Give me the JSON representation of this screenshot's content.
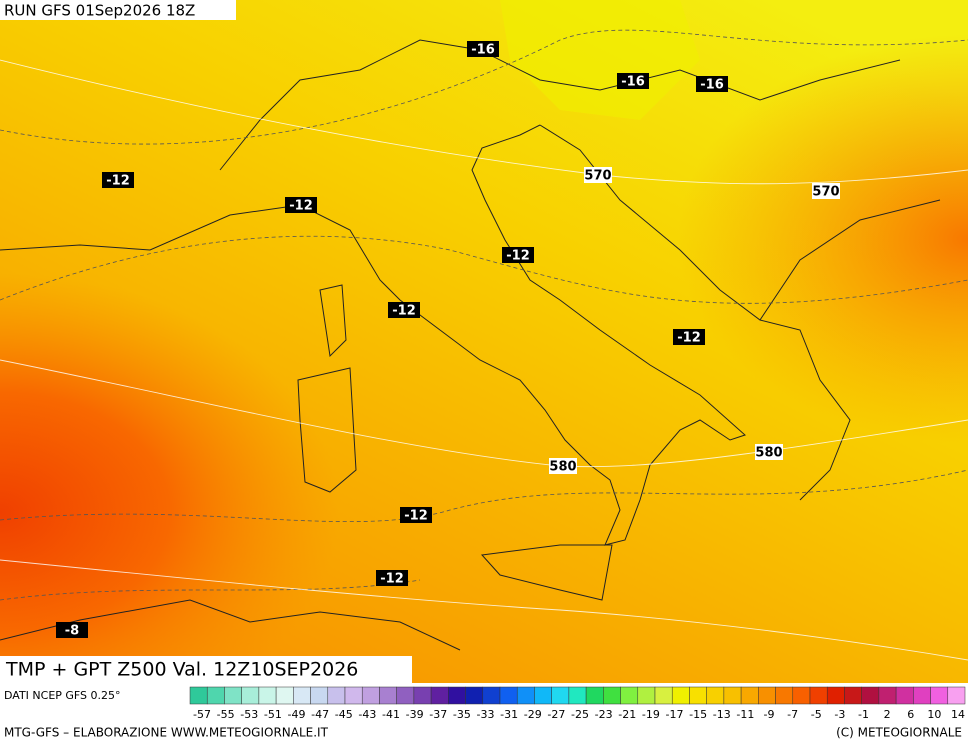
{
  "header": {
    "run": "RUN GFS 01Sep2026 18Z"
  },
  "labels": {
    "temperature": [
      "-16",
      "-16",
      "-16",
      "-12",
      "-12",
      "-12",
      "-12",
      "-12",
      "-12",
      "-12",
      "-8"
    ],
    "geopotential": [
      "570",
      "570",
      "580",
      "580"
    ]
  },
  "title": "TMP + GPT Z500 Val. 12Z10SEP2026",
  "source": "DATI NCEP GFS 0.25°",
  "colorbar": {
    "labels": [
      "-57",
      "-55",
      "-53",
      "-51",
      "-49",
      "-47",
      "-45",
      "-43",
      "-41",
      "-39",
      "-37",
      "-35",
      "-33",
      "-31",
      "-29",
      "-27",
      "-25",
      "-23",
      "-21",
      "-19",
      "-17",
      "-15",
      "-13",
      "-11",
      "-9",
      "-7",
      "-5",
      "-3",
      "-1",
      "2",
      "6",
      "10",
      "14"
    ],
    "colors": [
      "#2fc99a",
      "#4fd6ad",
      "#7fe3c6",
      "#a8eed9",
      "#c9f5e8",
      "#dff7f1",
      "#d8e8f5",
      "#c8d8f0",
      "#c8c0ec",
      "#d0b8ec",
      "#c0a0e0",
      "#a880d0",
      "#9060c0",
      "#7840b0",
      "#6020a0",
      "#3010a0",
      "#1020b0",
      "#1040d0",
      "#1060f0",
      "#1090f8",
      "#10b8f8",
      "#20d8f0",
      "#20e8c0",
      "#20d860",
      "#40e040",
      "#80f040",
      "#b0f040",
      "#d8f040",
      "#f0f000",
      "#f8e000",
      "#f8d000",
      "#f8c000",
      "#f8a800",
      "#f89000",
      "#f87800",
      "#f86000",
      "#f04000",
      "#e02000",
      "#c81818",
      "#b01040",
      "#c02070",
      "#d030a0",
      "#e040c0",
      "#f060e0",
      "#f8a0f0"
    ]
  },
  "footer": {
    "left": "MTG-GFS – ELABORAZIONE WWW.METEOGIORNALE.IT",
    "right": "(C) METEOGIORNALE"
  }
}
